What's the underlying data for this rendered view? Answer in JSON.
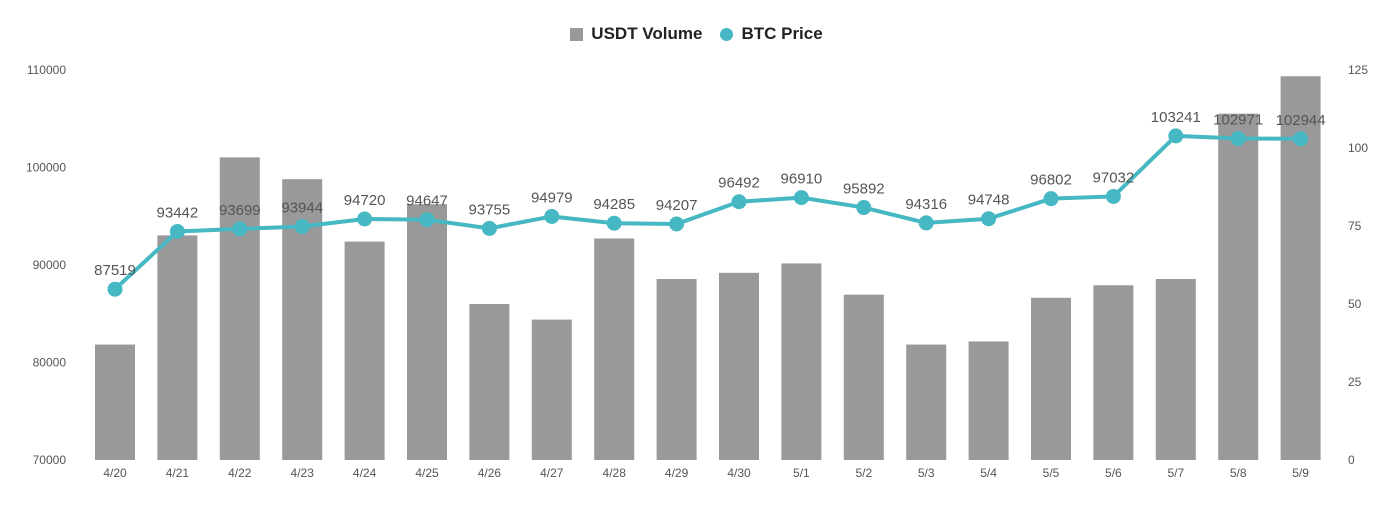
{
  "legend": {
    "bar_series": "USDT Volume",
    "line_series": "BTC Price"
  },
  "colors": {
    "bar": "#999999",
    "line": "#45b8c3",
    "text": "#555555"
  },
  "chart_data": {
    "type": "bar",
    "categories": [
      "4/20",
      "4/21",
      "4/22",
      "4/23",
      "4/24",
      "4/25",
      "4/26",
      "4/27",
      "4/28",
      "4/29",
      "4/30",
      "5/1",
      "5/2",
      "5/3",
      "5/4",
      "5/5",
      "5/6",
      "5/7",
      "5/8",
      "5/9"
    ],
    "series": [
      {
        "name": "USDT Volume",
        "type": "bar",
        "axis": "right",
        "values": [
          37,
          72,
          97,
          90,
          70,
          82,
          50,
          45,
          71,
          58,
          60,
          63,
          53,
          37,
          38,
          52,
          56,
          58,
          111,
          123
        ]
      },
      {
        "name": "BTC Price",
        "type": "line",
        "axis": "left",
        "values": [
          87519,
          93442,
          93699,
          93944,
          94720,
          94647,
          93755,
          94979,
          94285,
          94207,
          96492,
          96910,
          95892,
          94316,
          94748,
          96802,
          97032,
          103241,
          102971,
          102944
        ],
        "data_labels": [
          "87519",
          "93442",
          "93699",
          "93944",
          "94720",
          "94647",
          "93755",
          "94979",
          "94285",
          "94207",
          "96492",
          "96910",
          "95892",
          "94316",
          "94748",
          "96802",
          "97032",
          "103241",
          "102971",
          "102944"
        ]
      }
    ],
    "y_left": {
      "range": [
        70000,
        110000
      ],
      "ticks": [
        "70000",
        "80000",
        "90000",
        "100000",
        "110000"
      ]
    },
    "y_right": {
      "range": [
        0,
        125
      ],
      "ticks": [
        "0",
        "25",
        "50",
        "75",
        "100",
        "125"
      ]
    },
    "grid": false,
    "legend_position": "top-center"
  }
}
